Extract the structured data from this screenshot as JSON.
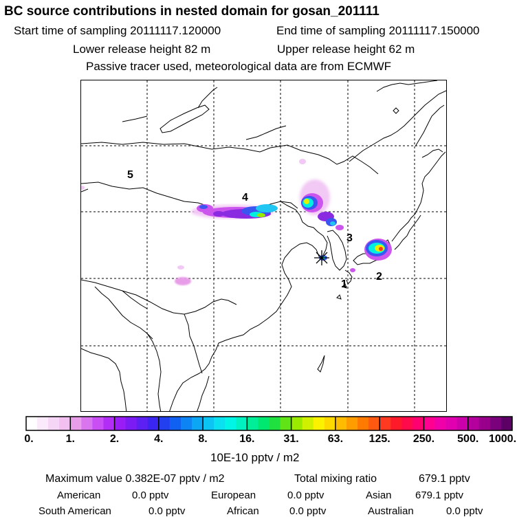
{
  "header": {
    "title": "BC  source contributions in nested domain for gosan_201111",
    "start_label": "Start time of sampling 20111117.120000",
    "end_label": "End time of sampling 20111117.150000",
    "lower_release": "Lower release height   82 m",
    "upper_release": "Upper release height   62 m",
    "tracer_note": "Passive tracer used, meteorological data are from ECMWF"
  },
  "map": {
    "region_labels": [
      "1",
      "2",
      "3",
      "4",
      "5"
    ],
    "receptor_marker": "asterisk-icon",
    "plume_colors": [
      "#f2c8f4",
      "#cc55ee",
      "#8a2be2",
      "#3a55f0",
      "#22c6f2",
      "#00f0e0",
      "#e6f000",
      "#ff3a1a"
    ]
  },
  "colorbar": {
    "unit": "10E-10 pptv / m2",
    "tick_labels": [
      "0.",
      "1.",
      "2.",
      "4.",
      "8.",
      "16.",
      "31.",
      "63.",
      "125.",
      "250.",
      "500.",
      "1000."
    ],
    "colors": [
      "#ffffff",
      "#fbeafb",
      "#f6d6f6",
      "#f1c0f1",
      "#e89de8",
      "#d975ee",
      "#c94ff5",
      "#b22df6",
      "#9a1df5",
      "#7c1cf4",
      "#5c20f2",
      "#3b25f0",
      "#2240f0",
      "#1060f2",
      "#0d84f4",
      "#0ba6f4",
      "#0cc4f4",
      "#0be0f0",
      "#00f5e6",
      "#00f2c0",
      "#00ee98",
      "#00e870",
      "#20e040",
      "#60e418",
      "#9aea00",
      "#cff000",
      "#fbf200",
      "#ffd800",
      "#ffbc00",
      "#ff9c00",
      "#ff7a00",
      "#ff5a10",
      "#ff3a20",
      "#ff1a2a",
      "#ff0a4a",
      "#ff0070",
      "#ff0090",
      "#f000a8",
      "#e000b0",
      "#cc00aa",
      "#b4009c",
      "#98008c",
      "#7a007c",
      "#5c0066"
    ]
  },
  "stats": {
    "max_value": "Maximum value  0.382E-07 pptv / m2",
    "total_label": "Total mixing ratio",
    "total_value": "679.1 pptv",
    "regions": [
      {
        "name": "American",
        "value": "0.0 pptv"
      },
      {
        "name": "European",
        "value": "0.0 pptv"
      },
      {
        "name": "Asian",
        "value": "679.1 pptv"
      },
      {
        "name": "South American",
        "value": "0.0 pptv"
      },
      {
        "name": "African",
        "value": "0.0 pptv"
      },
      {
        "name": "Australian",
        "value": "0.0 pptv"
      }
    ]
  }
}
